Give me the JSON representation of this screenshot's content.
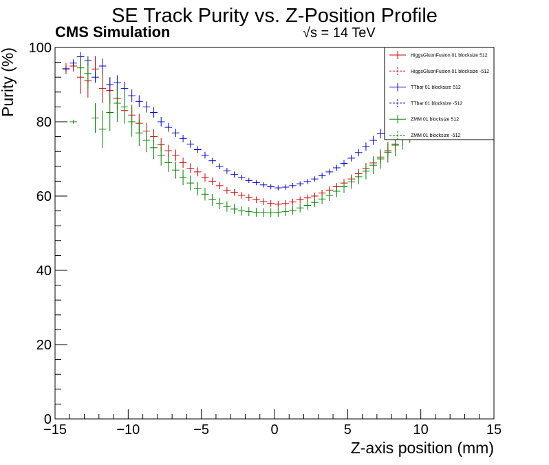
{
  "chart_data": {
    "type": "scatter",
    "title": "SE Track Purity vs. Z-Position Profile",
    "cms_label": "CMS Simulation",
    "energy_label": "√s = 14 TeV",
    "xlabel": "Z-axis position (mm)",
    "ylabel": "Purity (%)",
    "xlim": [
      -15,
      15
    ],
    "ylim": [
      0,
      100
    ],
    "xticks": [
      -15,
      -10,
      -5,
      0,
      5,
      10,
      15
    ],
    "xtick_labels": [
      "−15",
      "−10",
      "−5",
      "0",
      "5",
      "10",
      "15"
    ],
    "yticks": [
      0,
      20,
      40,
      60,
      80,
      100
    ],
    "legend_position": "top-right",
    "grid": false,
    "series": [
      {
        "name": "HiggsGluonFusion 01 blocksize 512",
        "color": "#d00000",
        "line": "solid",
        "x": [
          -14.25,
          -13.75,
          -13.25,
          -12.75,
          -12.25,
          -11.75,
          -11.25,
          -10.75,
          -10.25,
          -9.75,
          -9.25,
          -8.75,
          -8.25,
          -7.75,
          -7.25,
          -6.75,
          -6.25,
          -5.75,
          -5.25,
          -4.75,
          -4.25,
          -3.75,
          -3.25,
          -2.75,
          -2.25,
          -1.75,
          -1.25,
          -0.75,
          -0.25,
          0.25,
          0.75,
          1.25,
          1.75,
          2.25,
          2.75,
          3.25,
          3.75,
          4.25,
          4.75,
          5.25,
          5.75,
          6.25,
          6.75,
          7.25,
          7.75,
          8.25,
          8.75,
          9.25,
          9.75
        ],
        "y": [
          94.3,
          95.0,
          92.0,
          91.0,
          94.2,
          89.0,
          88.4,
          86.3,
          83.0,
          81.8,
          79.6,
          77.5,
          76.0,
          73.8,
          72.2,
          71.0,
          69.0,
          67.5,
          66.5,
          65.0,
          64.0,
          62.8,
          61.5,
          61.0,
          60.2,
          59.6,
          59.0,
          58.5,
          58.0,
          57.8,
          58.0,
          58.4,
          59.0,
          59.5,
          60.0,
          60.8,
          61.6,
          62.5,
          63.5,
          64.6,
          66.0,
          67.4,
          68.9,
          70.5,
          72.2,
          74.0,
          75.9,
          78.0,
          80.0
        ],
        "err": [
          1.5,
          1.5,
          4.5,
          4.5,
          3.5,
          4.0,
          3.5,
          3.0,
          3.0,
          2.8,
          2.5,
          2.2,
          2.0,
          1.8,
          1.6,
          1.5,
          1.4,
          1.3,
          1.2,
          1.1,
          1.0,
          1.0,
          0.9,
          0.9,
          0.9,
          0.9,
          0.9,
          0.9,
          0.9,
          0.9,
          0.9,
          0.9,
          0.9,
          0.9,
          0.9,
          0.9,
          1.0,
          1.0,
          1.1,
          1.2,
          1.3,
          1.4,
          1.5,
          1.7,
          1.9,
          2.1,
          2.4,
          2.7,
          3.0
        ]
      },
      {
        "name": "TTbar 01 blocksize 512",
        "color": "#0000d0",
        "line": "solid",
        "x": [
          -14.25,
          -13.75,
          -13.25,
          -12.75,
          -12.25,
          -11.75,
          -11.25,
          -10.75,
          -10.25,
          -9.75,
          -9.25,
          -8.75,
          -8.25,
          -7.75,
          -7.25,
          -6.75,
          -6.25,
          -5.75,
          -5.25,
          -4.75,
          -4.25,
          -3.75,
          -3.25,
          -2.75,
          -2.25,
          -1.75,
          -1.25,
          -0.75,
          -0.25,
          0.25,
          0.75,
          1.25,
          1.75,
          2.25,
          2.75,
          3.25,
          3.75,
          4.25,
          4.75,
          5.25,
          5.75,
          6.25,
          6.75,
          7.25,
          7.75,
          8.25,
          8.75,
          9.25,
          9.75
        ],
        "y": [
          94.2,
          95.8,
          97.5,
          96.4,
          92.0,
          95.0,
          90.0,
          90.5,
          89.0,
          87.0,
          85.5,
          84.0,
          82.5,
          80.0,
          78.5,
          77.0,
          75.5,
          74.0,
          72.5,
          71.0,
          69.5,
          68.0,
          66.8,
          65.8,
          65.0,
          64.2,
          63.6,
          63.0,
          62.5,
          62.2,
          62.4,
          62.8,
          63.3,
          63.9,
          64.6,
          65.5,
          66.5,
          67.6,
          68.8,
          70.2,
          71.7,
          73.3,
          75.0,
          76.8,
          78.7,
          80.7,
          82.8,
          85.0,
          87.0
        ],
        "err": [
          0.8,
          1.0,
          1.2,
          1.2,
          1.5,
          2.0,
          2.0,
          2.0,
          1.8,
          1.7,
          1.6,
          1.5,
          1.4,
          1.3,
          1.2,
          1.1,
          1.0,
          1.0,
          0.9,
          0.9,
          0.8,
          0.8,
          0.8,
          0.8,
          0.7,
          0.7,
          0.7,
          0.7,
          0.7,
          0.7,
          0.7,
          0.7,
          0.7,
          0.7,
          0.7,
          0.8,
          0.8,
          0.8,
          0.9,
          0.9,
          1.0,
          1.1,
          1.2,
          1.3,
          1.4,
          1.5,
          1.7,
          1.9,
          2.1
        ]
      },
      {
        "name": "ZMM 01 blocksize 512",
        "color": "#008000",
        "line": "solid",
        "x": [
          -13.75,
          -13.25,
          -12.75,
          -12.25,
          -11.75,
          -11.25,
          -10.75,
          -10.25,
          -9.75,
          -9.25,
          -8.75,
          -8.25,
          -7.75,
          -7.25,
          -6.75,
          -6.25,
          -5.75,
          -5.25,
          -4.75,
          -4.25,
          -3.75,
          -3.25,
          -2.75,
          -2.25,
          -1.75,
          -1.25,
          -0.75,
          -0.25,
          0.25,
          0.75,
          1.25,
          1.75,
          2.25,
          2.75,
          3.25,
          3.75,
          4.25,
          4.75,
          5.25,
          5.75,
          6.25,
          6.75,
          7.25,
          7.75,
          8.25,
          8.75,
          9.25,
          9.75
        ],
        "y": [
          80.0,
          94.5,
          93.0,
          81.0,
          78.0,
          82.5,
          85.0,
          84.0,
          80.0,
          77.0,
          75.0,
          73.0,
          71.0,
          69.0,
          67.0,
          65.0,
          63.5,
          62.0,
          60.5,
          59.0,
          58.0,
          57.2,
          56.5,
          56.0,
          55.8,
          55.6,
          55.5,
          55.5,
          55.6,
          55.8,
          56.2,
          56.8,
          57.5,
          58.3,
          59.2,
          60.2,
          61.3,
          62.5,
          63.8,
          65.2,
          66.7,
          68.3,
          70.0,
          71.8,
          73.7,
          75.7,
          77.8,
          80.0
        ],
        "err": [
          0.5,
          3.0,
          4.0,
          4.0,
          5.0,
          5.0,
          5.0,
          4.5,
          4.0,
          3.5,
          3.2,
          3.0,
          2.8,
          2.5,
          2.3,
          2.1,
          2.0,
          1.8,
          1.7,
          1.6,
          1.5,
          1.4,
          1.3,
          1.3,
          1.2,
          1.2,
          1.2,
          1.2,
          1.2,
          1.2,
          1.2,
          1.2,
          1.3,
          1.3,
          1.4,
          1.5,
          1.6,
          1.7,
          1.8,
          2.0,
          2.2,
          2.4,
          2.6,
          2.8,
          3.0,
          3.2,
          3.5,
          3.8
        ]
      }
    ],
    "legend": [
      {
        "label": "HiggsGluonFusion 01 blocksize 512",
        "color": "#d00000",
        "line": "solid"
      },
      {
        "label": "HiggsGluonFusion 01 blocksize -512",
        "color": "#d00000",
        "line": "dashed"
      },
      {
        "label": "TTbar 01 blocksize 512",
        "color": "#0000d0",
        "line": "solid"
      },
      {
        "label": "TTbar 01 blocksize -512",
        "color": "#0000d0",
        "line": "dashed"
      },
      {
        "label": "ZMM 01 blocksize 512",
        "color": "#008000",
        "line": "solid"
      },
      {
        "label": "ZMM 01 blocksize -512",
        "color": "#008000",
        "line": "dashed"
      }
    ]
  }
}
